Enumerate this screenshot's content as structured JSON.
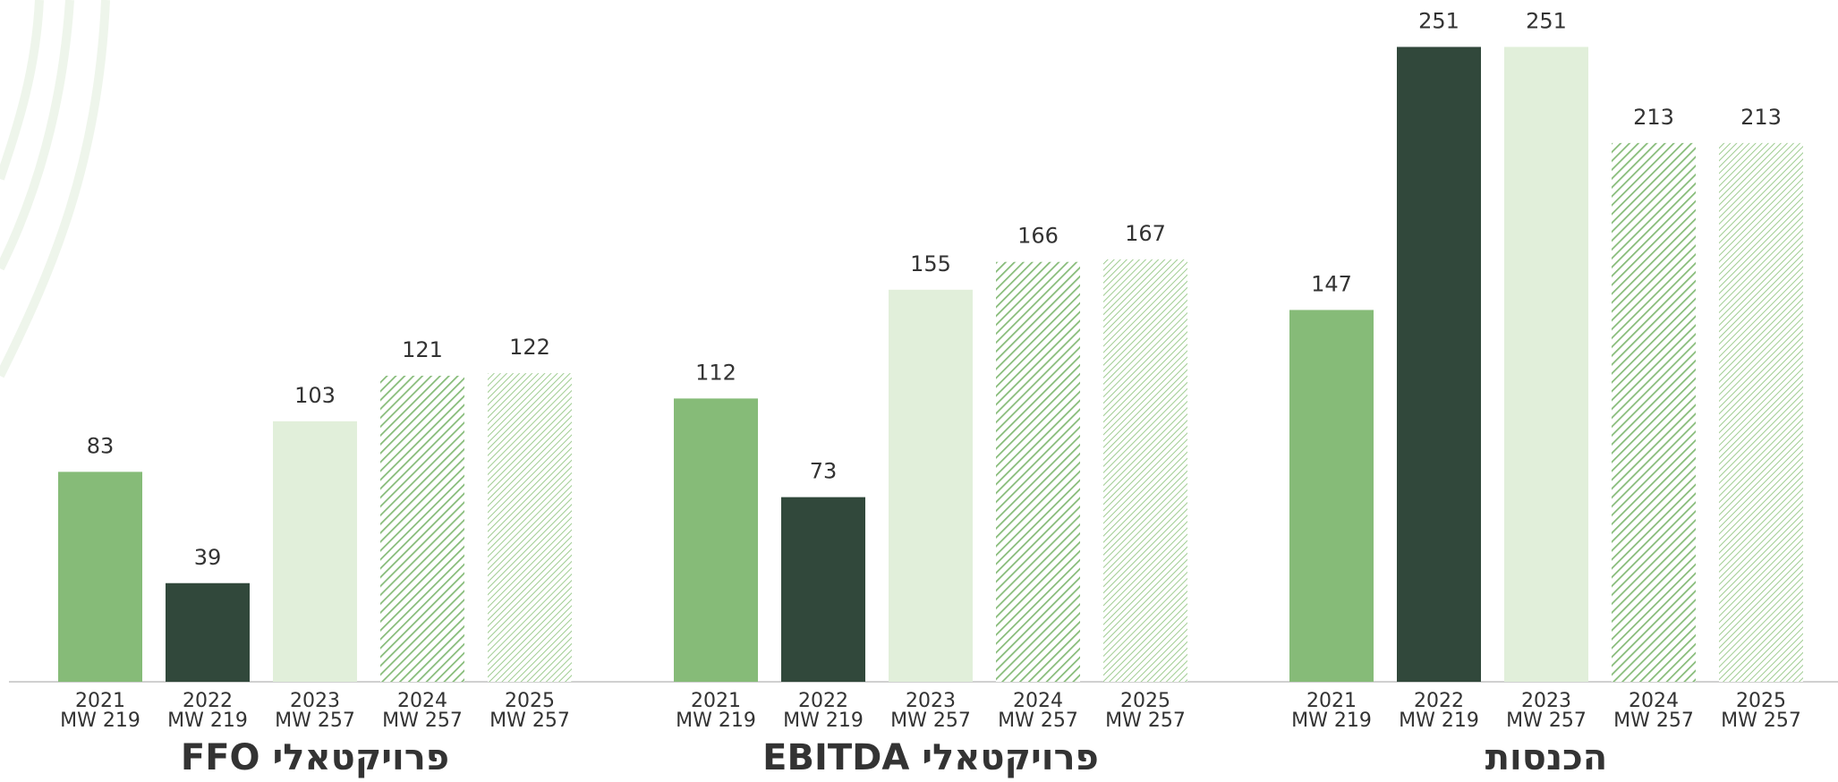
{
  "chart_data": [
    {
      "type": "bar",
      "title": "פרויקטאלי FFO",
      "categories": [
        [
          "2021",
          "MW 219"
        ],
        [
          "2022",
          "MW 219"
        ],
        [
          "2023",
          "MW 257"
        ],
        [
          "2024",
          "MW 257"
        ],
        [
          "2025",
          "MW 257"
        ]
      ],
      "values": [
        83,
        39,
        103,
        121,
        122
      ],
      "colors": [
        "#86bb78",
        "#31483b",
        "#e1efda",
        "#86bb78",
        "#9fcc91"
      ],
      "hatch": [
        false,
        false,
        false,
        true,
        true
      ],
      "ylim": [
        0,
        260
      ]
    },
    {
      "type": "bar",
      "title": "פרויקטאלי EBITDA",
      "categories": [
        [
          "2021",
          "MW 219"
        ],
        [
          "2022",
          "MW 219"
        ],
        [
          "2023",
          "MW 257"
        ],
        [
          "2024",
          "MW 257"
        ],
        [
          "2025",
          "MW 257"
        ]
      ],
      "values": [
        112,
        73,
        155,
        166,
        167
      ],
      "colors": [
        "#86bb78",
        "#31483b",
        "#e1efda",
        "#86bb78",
        "#9fcc91"
      ],
      "hatch": [
        false,
        false,
        false,
        true,
        true
      ],
      "ylim": [
        0,
        260
      ]
    },
    {
      "type": "bar",
      "title": "הכנסות",
      "categories": [
        [
          "2021",
          "MW 219"
        ],
        [
          "2022",
          "MW 219"
        ],
        [
          "2023",
          "MW 257"
        ],
        [
          "2024",
          "MW 257"
        ],
        [
          "2025",
          "MW 257"
        ]
      ],
      "values": [
        147,
        251,
        251,
        213,
        213
      ],
      "colors": [
        "#86bb78",
        "#31483b",
        "#e1efda",
        "#86bb78",
        "#9fcc91"
      ],
      "hatch": [
        false,
        false,
        false,
        true,
        true
      ],
      "ylim": [
        0,
        260
      ]
    }
  ]
}
